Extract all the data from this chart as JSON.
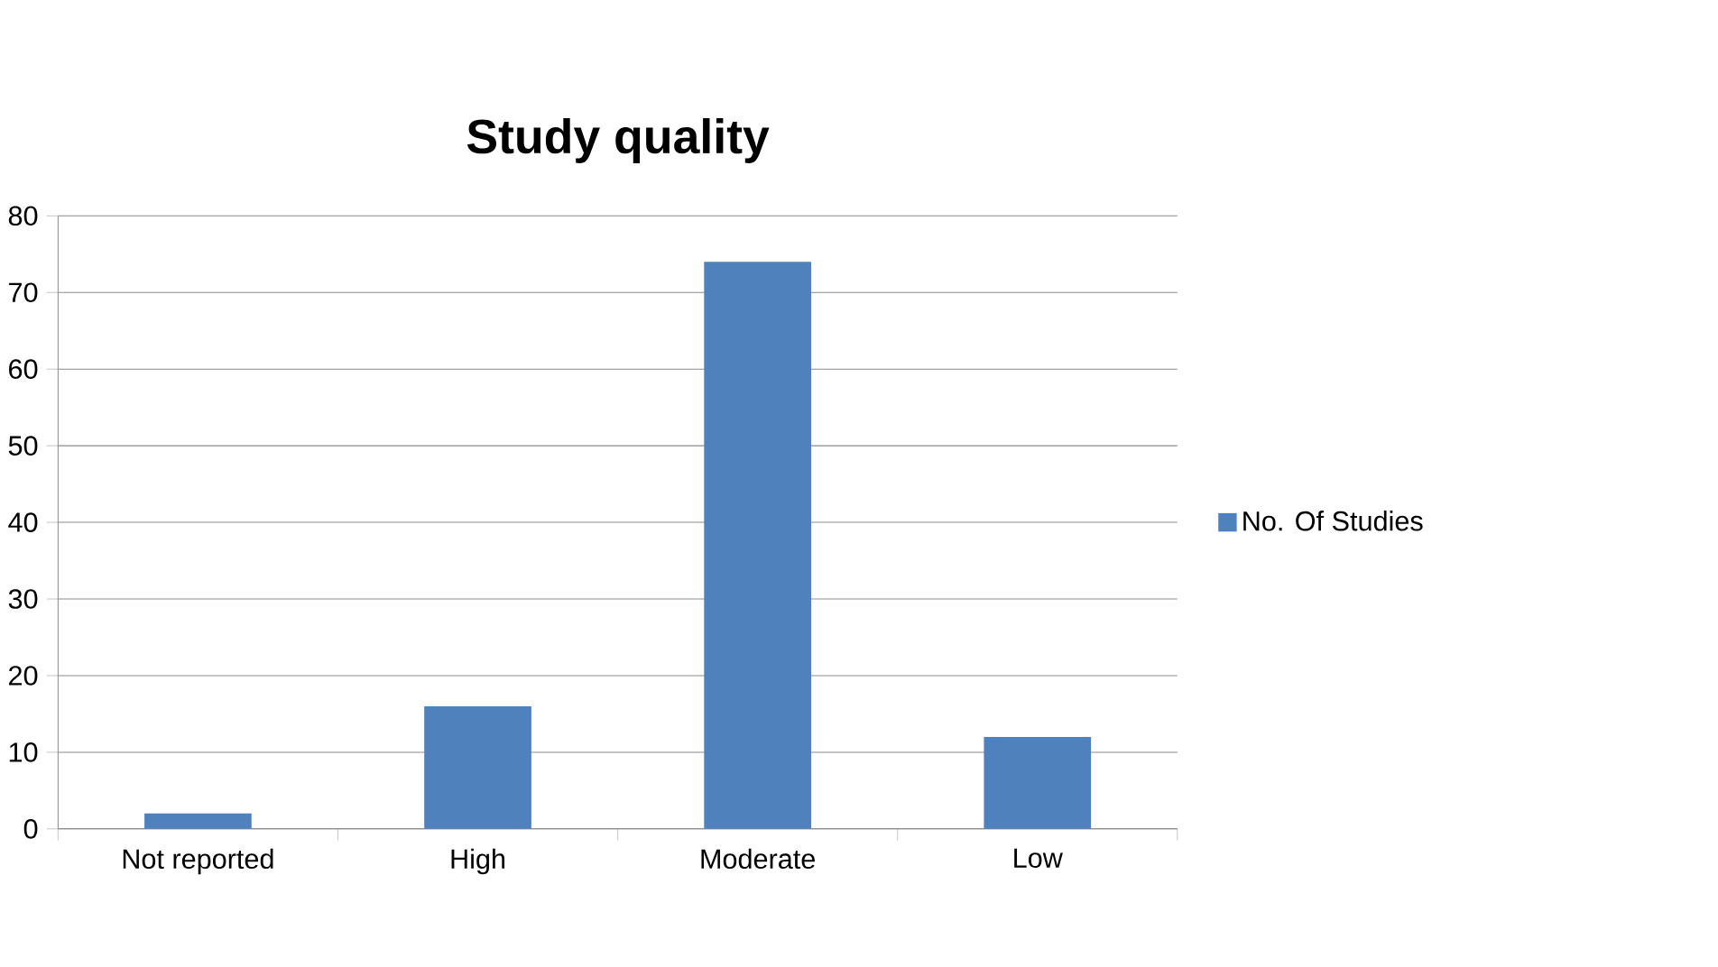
{
  "chart_data": {
    "type": "bar",
    "title": "Study quality",
    "categories": [
      "Not reported",
      "High",
      "Moderate",
      "Low"
    ],
    "series": [
      {
        "name": "No. Of Studies",
        "color": "#4f81bd",
        "values": [
          2,
          16,
          74,
          12
        ]
      }
    ],
    "ylim": [
      0,
      80
    ],
    "yticks": [
      0,
      10,
      20,
      30,
      40,
      50,
      60,
      70,
      80
    ],
    "grid": "y",
    "legend": "right"
  }
}
